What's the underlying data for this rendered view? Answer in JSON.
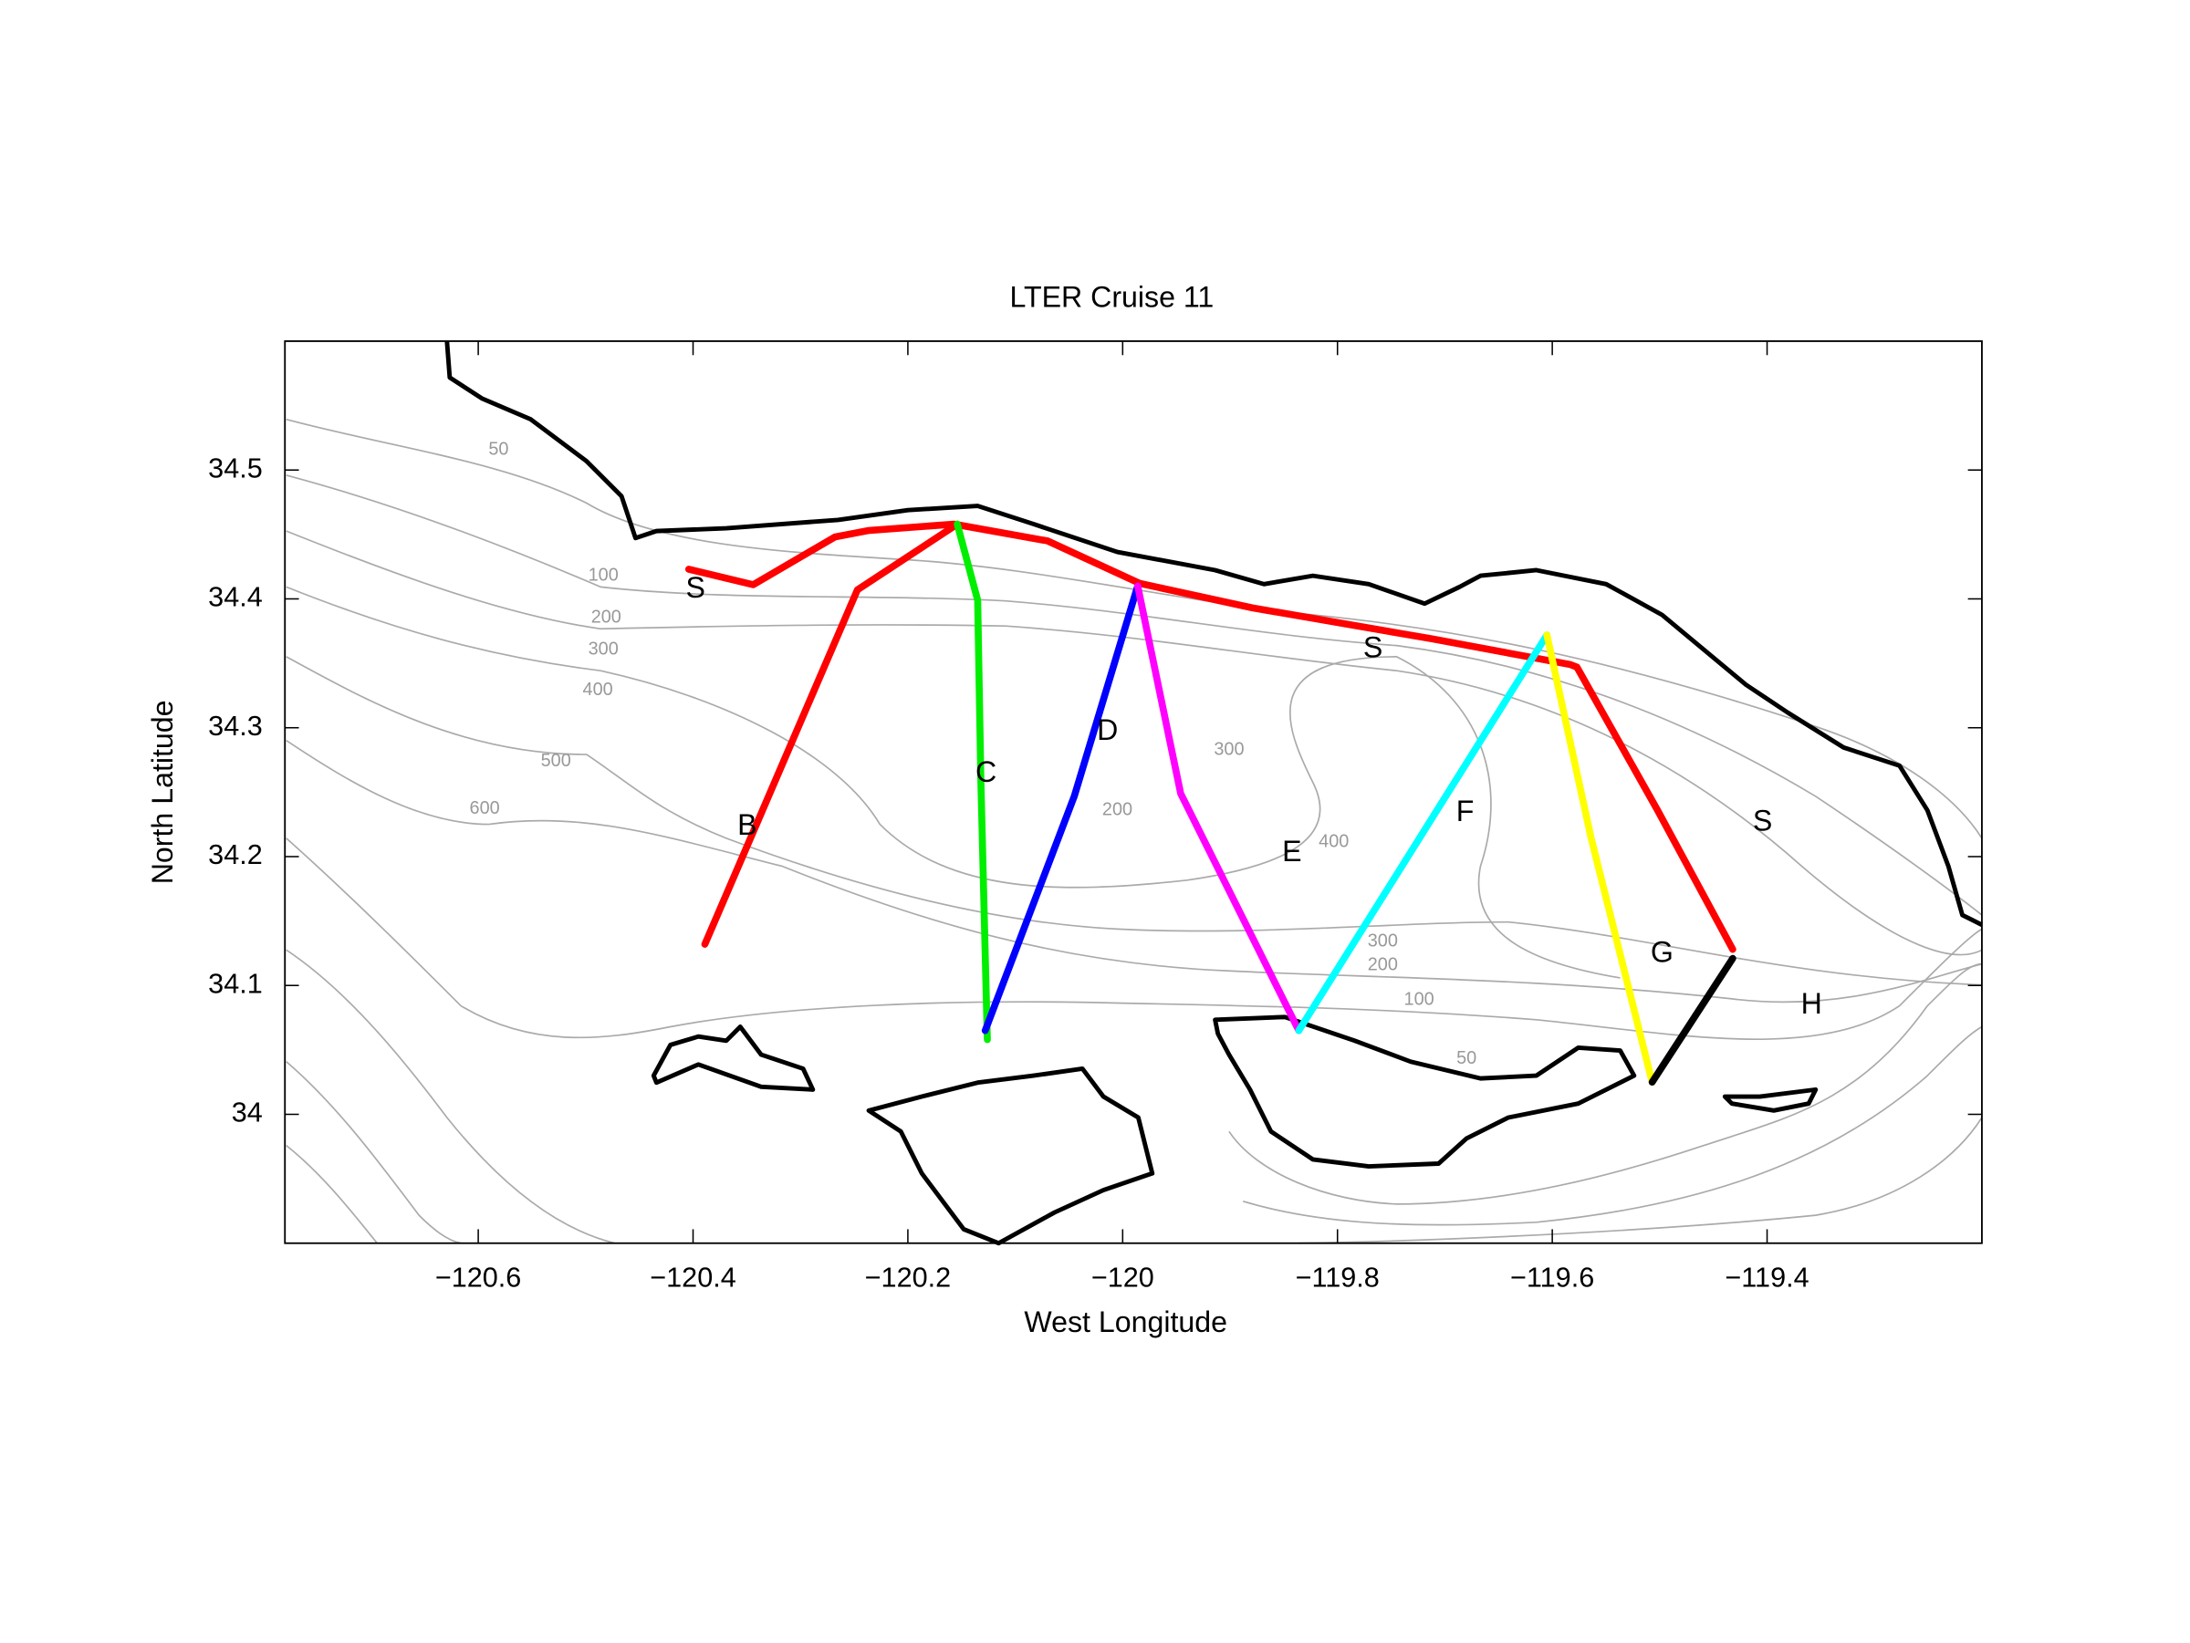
{
  "chart_data": {
    "type": "map",
    "title": "LTER Cruise 11",
    "x_label": "West Longitude",
    "y_label": "North Latitude",
    "xlim": [
      -120.78,
      -119.2
    ],
    "ylim": [
      33.9,
      34.6
    ],
    "xticks": [
      {
        "value": -120.6,
        "label": "−120.6"
      },
      {
        "value": -120.4,
        "label": "−120.4"
      },
      {
        "value": -120.2,
        "label": "−120.2"
      },
      {
        "value": -120,
        "label": "−120"
      },
      {
        "value": -119.8,
        "label": "−119.8"
      },
      {
        "value": -119.6,
        "label": "−119.6"
      },
      {
        "value": -119.4,
        "label": "−119.4"
      }
    ],
    "yticks": [
      34,
      34.1,
      34.2,
      34.3,
      34.4,
      34.5
    ],
    "grid": false,
    "series": [
      {
        "name": "S",
        "color": "#ff0000",
        "x": [
          -120.404,
          -120.344,
          -120.268,
          -120.237,
          -120.157,
          -120.07,
          -119.984,
          -119.879,
          -119.712,
          -119.583,
          -119.577,
          -119.502,
          -119.432
        ],
        "y": [
          34.423,
          34.411,
          34.448,
          34.453,
          34.458,
          34.445,
          34.412,
          34.393,
          34.369,
          34.349,
          34.347,
          34.236,
          34.128
        ]
      },
      {
        "name": "B",
        "color": "#ff0000",
        "x": [
          -120.389,
          -120.247,
          -120.154
        ],
        "y": [
          34.132,
          34.407,
          34.458
        ]
      },
      {
        "name": "C",
        "color": "#00ee00",
        "x": [
          -120.154,
          -120.135,
          -120.132,
          -120.126
        ],
        "y": [
          34.458,
          34.399,
          34.258,
          34.058
        ]
      },
      {
        "name": "D",
        "color": "#0000ff",
        "x": [
          -120.128,
          -120.045,
          -119.986
        ],
        "y": [
          34.065,
          34.247,
          34.41
        ]
      },
      {
        "name": "E",
        "color": "#ff00ff",
        "x": [
          -119.986,
          -119.946,
          -119.836
        ],
        "y": [
          34.41,
          34.249,
          34.065
        ]
      },
      {
        "name": "F",
        "color": "#00ffff",
        "x": [
          -119.836,
          -119.605
        ],
        "y": [
          34.065,
          34.372
        ]
      },
      {
        "name": "G",
        "color": "#ffff00",
        "x": [
          -119.605,
          -119.564,
          -119.507
        ],
        "y": [
          34.372,
          34.215,
          34.025
        ]
      },
      {
        "name": "H",
        "color": "#000000",
        "x": [
          -119.507,
          -119.432
        ],
        "y": [
          34.025,
          34.121
        ]
      }
    ],
    "contour_labels": [
      50,
      100,
      200,
      300,
      400,
      500,
      600,
      300,
      200,
      400,
      300,
      200,
      100,
      50
    ]
  }
}
